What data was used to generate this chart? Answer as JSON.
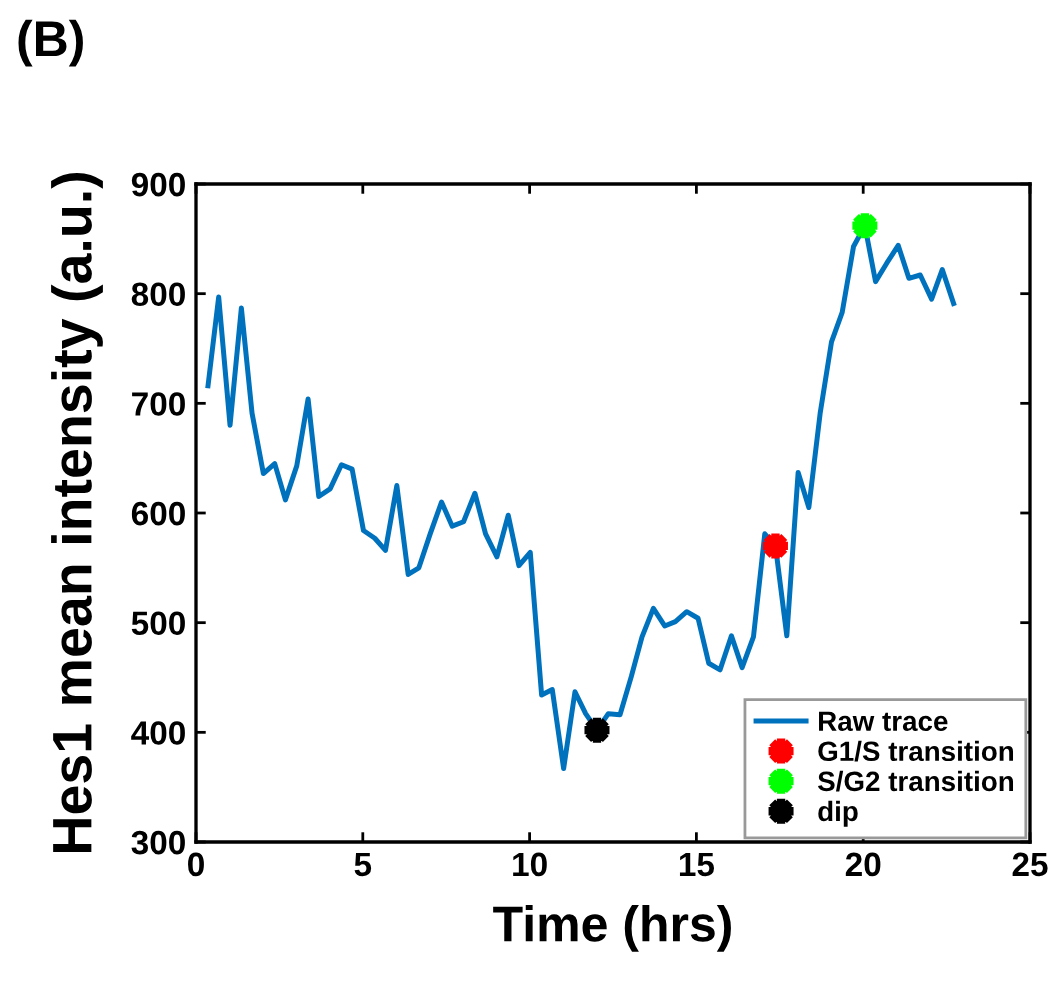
{
  "chart_data": {
    "type": "line",
    "title": "(B)",
    "xlabel": "Time (hrs)",
    "ylabel": "Hes1 mean intensity (a.u.)",
    "xlim": [
      0,
      25
    ],
    "xticks": [
      0,
      5,
      10,
      15,
      20,
      25
    ],
    "ylim": [
      300,
      900
    ],
    "yticks": [
      300,
      400,
      500,
      600,
      700,
      800,
      900
    ],
    "grid": false,
    "legend": "bottom right",
    "line_style": "solid",
    "series": [
      {
        "name": "Raw trace",
        "color": "#0072bd",
        "marker": "none",
        "x": [
          0.36,
          0.68,
          1.02,
          1.36,
          1.68,
          2.02,
          2.36,
          2.68,
          3.02,
          3.36,
          3.68,
          4.02,
          4.36,
          4.68,
          5.02,
          5.36,
          5.68,
          6.02,
          6.36,
          6.68,
          7.02,
          7.36,
          7.68,
          8.02,
          8.36,
          8.68,
          9.02,
          9.36,
          9.68,
          10.02,
          10.36,
          10.68,
          11.02,
          11.36,
          11.68,
          12.02,
          12.36,
          12.71,
          13.05,
          13.37,
          13.71,
          14.05,
          14.37,
          14.71,
          15.05,
          15.37,
          15.71,
          16.05,
          16.37,
          16.71,
          17.05,
          17.37,
          17.71,
          18.05,
          18.37,
          18.71,
          19.05,
          19.37,
          19.71,
          20.05,
          20.37,
          20.71,
          21.05,
          21.37,
          21.71,
          22.05,
          22.37,
          22.71
        ],
        "values": [
          716,
          797,
          680,
          787,
          691,
          636,
          645,
          612,
          643,
          704,
          615,
          622,
          644,
          640,
          584,
          577,
          566,
          625,
          544,
          550,
          581,
          610,
          588,
          592,
          618,
          581,
          560,
          598,
          552,
          564,
          434,
          439,
          367,
          437,
          417,
          402,
          417,
          416,
          451,
          487,
          513,
          497,
          501,
          510,
          504,
          463,
          457,
          488,
          459,
          487,
          581,
          570,
          488,
          637,
          605,
          691,
          756,
          783,
          843,
          862,
          811,
          828,
          844,
          814,
          817,
          795,
          822,
          791
        ]
      },
      {
        "name": "G1/S transition",
        "type": "scatter",
        "color": "#ff0000",
        "marker": "star",
        "x": [
          17.37
        ],
        "values": [
          570
        ]
      },
      {
        "name": "S/G2 transition",
        "type": "scatter",
        "color": "#00ff00",
        "marker": "star",
        "x": [
          20.05
        ],
        "values": [
          862
        ]
      },
      {
        "name": "dip",
        "type": "scatter",
        "color": "#000000",
        "marker": "star",
        "x": [
          12.02
        ],
        "values": [
          402
        ]
      }
    ]
  }
}
